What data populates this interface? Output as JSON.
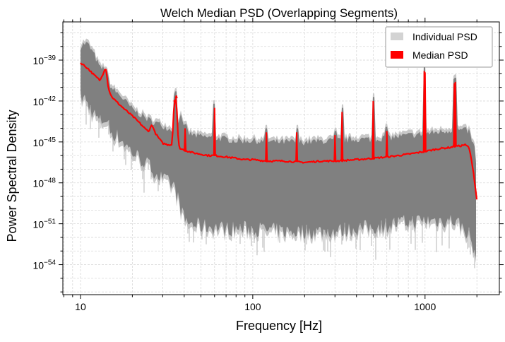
{
  "chart_data": {
    "type": "line",
    "title": "Welch Median PSD (Overlapping Segments)",
    "xlabel": "Frequency [Hz]",
    "ylabel": "Power Spectral Density",
    "xscale": "log",
    "yscale": "log",
    "xlim": [
      7.9,
      2700
    ],
    "ylim_exponent": [
      -56.2,
      -36.2
    ],
    "x_ticks": [
      {
        "value": 10,
        "label": "10"
      },
      {
        "value": 100,
        "label": "100"
      },
      {
        "value": 1000,
        "label": "1000"
      }
    ],
    "y_ticks": [
      {
        "exponent": -39,
        "base": "10",
        "exp_label": "−39"
      },
      {
        "exponent": -42,
        "base": "10",
        "exp_label": "−42"
      },
      {
        "exponent": -45,
        "base": "10",
        "exp_label": "−45"
      },
      {
        "exponent": -48,
        "base": "10",
        "exp_label": "−48"
      },
      {
        "exponent": -51,
        "base": "10",
        "exp_label": "−51"
      },
      {
        "exponent": -54,
        "base": "10",
        "exp_label": "−54"
      }
    ],
    "grid": true,
    "legend_position": "top-right",
    "legend": [
      {
        "label": "Individual PSD",
        "color": "#d3d3d3"
      },
      {
        "label": "Median PSD",
        "color": "#ff0000"
      }
    ],
    "series": [
      {
        "name": "Individual PSD",
        "kind": "band",
        "color": "#808080",
        "envelope_color": "#c8c8c8",
        "x": [
          10,
          10.5,
          11,
          12,
          13,
          14,
          15,
          17,
          20,
          25,
          30,
          35,
          38,
          40,
          45,
          50,
          60,
          70,
          80,
          100,
          120,
          150,
          200,
          300,
          400,
          500,
          700,
          1000,
          1500,
          1800,
          1950,
          2000
        ],
        "upper_exponent": [
          -38.0,
          -37.8,
          -37.8,
          -38.6,
          -39.6,
          -39.6,
          -41.0,
          -41.6,
          -42.6,
          -43.4,
          -43.8,
          -44.2,
          -43.0,
          -44.2,
          -44.5,
          -44.6,
          -44.7,
          -44.8,
          -44.9,
          -44.9,
          -45.0,
          -45.0,
          -45.0,
          -44.9,
          -44.8,
          -44.8,
          -44.6,
          -44.4,
          -44.1,
          -44.2,
          -45.6,
          -47.5
        ],
        "lower_exponent": [
          -42.0,
          -42.0,
          -42.5,
          -43.2,
          -43.8,
          -43.5,
          -44.5,
          -45.0,
          -46.0,
          -47.0,
          -48.0,
          -48.5,
          -50.0,
          -51.0,
          -51.3,
          -51.4,
          -51.5,
          -51.6,
          -51.6,
          -51.6,
          -51.7,
          -51.8,
          -51.8,
          -51.8,
          -51.6,
          -51.5,
          -51.2,
          -51.0,
          -51.0,
          -52.0,
          -53.5,
          -55.0
        ]
      },
      {
        "name": "Median PSD",
        "kind": "line",
        "color": "#ff0000",
        "x": [
          10,
          10.5,
          11,
          12,
          13,
          13.5,
          14,
          14.5,
          15,
          16,
          18,
          20,
          22,
          24,
          25,
          26,
          27,
          28,
          30,
          32,
          34,
          35,
          36,
          37,
          38,
          40,
          45,
          50,
          55,
          60,
          70,
          80,
          90,
          100,
          120,
          150,
          200,
          250,
          300,
          400,
          500,
          600,
          700,
          800,
          1000,
          1200,
          1400,
          1500,
          1600,
          1700,
          1800,
          1900,
          2000
        ],
        "y_exponent": [
          -39.2,
          -39.4,
          -39.6,
          -40.1,
          -40.5,
          -40.0,
          -39.5,
          -41.0,
          -41.6,
          -42.0,
          -42.6,
          -43.1,
          -43.6,
          -44.1,
          -44.2,
          -43.7,
          -44.3,
          -44.6,
          -45.1,
          -45.2,
          -45.2,
          -42.0,
          -41.8,
          -45.2,
          -45.5,
          -45.6,
          -45.8,
          -45.9,
          -46.0,
          -46.0,
          -46.1,
          -46.2,
          -46.3,
          -46.3,
          -46.4,
          -46.4,
          -46.5,
          -46.4,
          -46.4,
          -46.3,
          -46.2,
          -46.1,
          -46.0,
          -45.9,
          -45.7,
          -45.5,
          -45.4,
          -45.3,
          -45.3,
          -45.2,
          -45.4,
          -47.0,
          -49.3
        ]
      }
    ],
    "spectral_lines": [
      {
        "x": 35,
        "peak_exponent": -42.0
      },
      {
        "x": 36,
        "peak_exponent": -41.6
      },
      {
        "x": 40.5,
        "peak_exponent": -44.0
      },
      {
        "x": 60,
        "peak_exponent": -42.5
      },
      {
        "x": 120,
        "peak_exponent": -44.3
      },
      {
        "x": 180,
        "peak_exponent": -44.3
      },
      {
        "x": 300,
        "peak_exponent": -44.5
      },
      {
        "x": 330,
        "peak_exponent": -42.8
      },
      {
        "x": 500,
        "peak_exponent": -42.0
      },
      {
        "x": 600,
        "peak_exponent": -44.2
      },
      {
        "x": 990,
        "peak_exponent": -39.8
      },
      {
        "x": 1000,
        "peak_exponent": -39.9
      },
      {
        "x": 1480,
        "peak_exponent": -40.7
      },
      {
        "x": 1500,
        "peak_exponent": -40.6
      }
    ]
  }
}
